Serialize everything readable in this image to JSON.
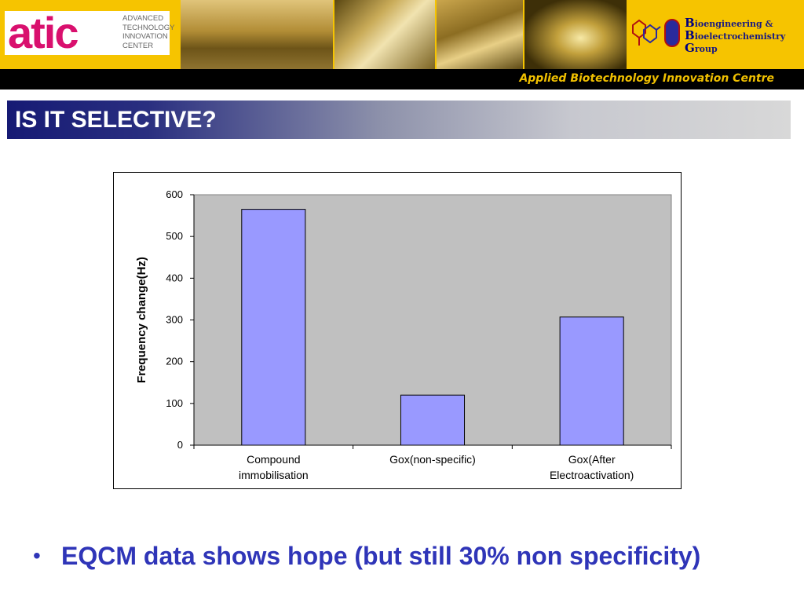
{
  "header": {
    "logo": {
      "wordmark": "atic",
      "lines": [
        "ADVANCED",
        "TECHNOLOGY",
        "INNOVATION",
        "CENTER"
      ]
    },
    "group_logo": {
      "lines": [
        {
          "cap": "B",
          "rest": "ioengineering",
          "suffix": " &"
        },
        {
          "cap": "B",
          "rest": "ioelectrochemistry",
          "suffix": ""
        },
        {
          "cap": "G",
          "rest": "roup",
          "suffix": ""
        }
      ]
    },
    "subtitle": "Applied Biotechnology Innovation Centre"
  },
  "slide": {
    "title": "IS IT SELECTIVE?",
    "bullet": "EQCM data shows hope (but still 30% non specificity)"
  },
  "colors": {
    "bar": "#9999ff",
    "plot_area": "#c0c0c0",
    "title_bar_start": "#161a74",
    "bullet_text": "#2f35b8",
    "banner": "#f6c400"
  },
  "chart_data": {
    "type": "bar",
    "categories": [
      [
        "Compound",
        "immobilisation"
      ],
      [
        "Gox(non-specific)"
      ],
      [
        "Gox(After",
        "Electroactivation)"
      ]
    ],
    "values": [
      565,
      120,
      307
    ],
    "title": "",
    "xlabel": "",
    "ylabel": "Frequency change(Hz)",
    "ylim": [
      0,
      600
    ],
    "yticks": [
      0,
      100,
      200,
      300,
      400,
      500,
      600
    ],
    "grid": false,
    "legend": "none"
  }
}
